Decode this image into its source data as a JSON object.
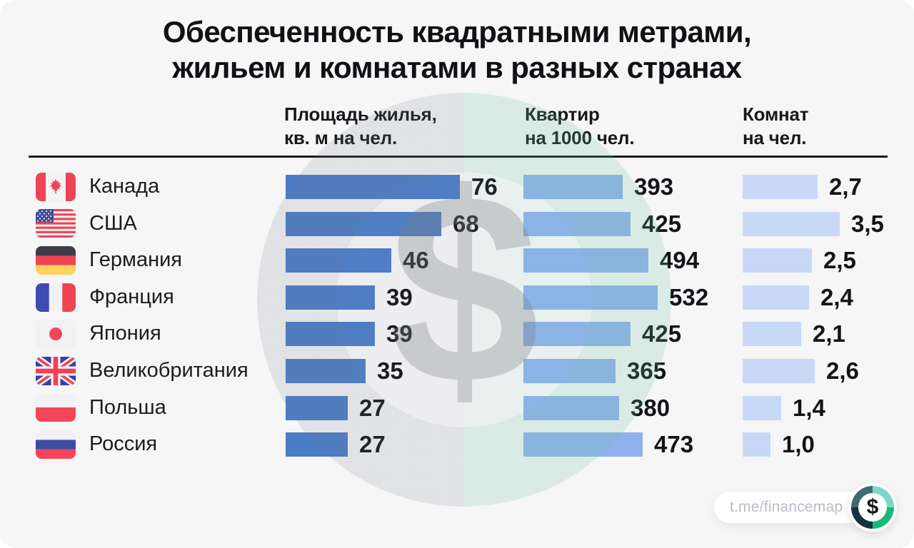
{
  "title": {
    "line1": "Обеспеченность квадратными метрами,",
    "line2": "жильем и комнатами в разных странах"
  },
  "columns": [
    {
      "label_line1": "Площадь жилья,",
      "label_line2": "кв. м на чел."
    },
    {
      "label_line1": "Квартир",
      "label_line2": "на 1000 чел."
    },
    {
      "label_line1": "Комнат",
      "label_line2": "на чел."
    }
  ],
  "chart_data": {
    "type": "bar",
    "title": "Обеспеченность квадратными метрами, жильем и комнатами в разных странах",
    "orientation": "horizontal",
    "categories": [
      "Канада",
      "США",
      "Германия",
      "Франция",
      "Япония",
      "Великобритания",
      "Польша",
      "Россия"
    ],
    "flags": [
      "canada",
      "usa",
      "germany",
      "france",
      "japan",
      "uk",
      "poland",
      "russia"
    ],
    "series": [
      {
        "name": "Площадь жилья, кв. м на чел.",
        "values": [
          76,
          68,
          46,
          39,
          39,
          35,
          27,
          27
        ],
        "labels": [
          "76",
          "68",
          "46",
          "39",
          "39",
          "35",
          "27",
          "27"
        ],
        "color": "#4b7dc8"
      },
      {
        "name": "Квартир на 1000 чел.",
        "values": [
          393,
          425,
          494,
          532,
          425,
          365,
          380,
          473
        ],
        "labels": [
          "393",
          "425",
          "494",
          "532",
          "425",
          "365",
          "380",
          "473"
        ],
        "color": "#8fb1ec"
      },
      {
        "name": "Комнат на чел.",
        "values": [
          2.7,
          3.5,
          2.5,
          2.4,
          2.1,
          2.6,
          1.4,
          1.0
        ],
        "labels": [
          "2,7",
          "3,5",
          "2,5",
          "2,4",
          "2,1",
          "2,6",
          "1,4",
          "1,0"
        ],
        "color": "#c7d9f7"
      }
    ],
    "value_labels_shown": true,
    "gridlines": false,
    "axes_shown": false
  },
  "watermark": {
    "symbol": "$"
  },
  "footer": {
    "handle": "t.me/financemap",
    "logo_symbol": "$",
    "logo_colors": {
      "light_teal": "#7fd8c6",
      "green": "#18b877",
      "dark_navy": "#16323e",
      "slate": "#3e6b74"
    }
  },
  "style_colors": {
    "background": "#f6f6f7",
    "bar_col1": "#4b7dc8",
    "bar_col2": "#8fb1ec",
    "bar_col3": "#c7d9f7",
    "text": "#17181c"
  }
}
